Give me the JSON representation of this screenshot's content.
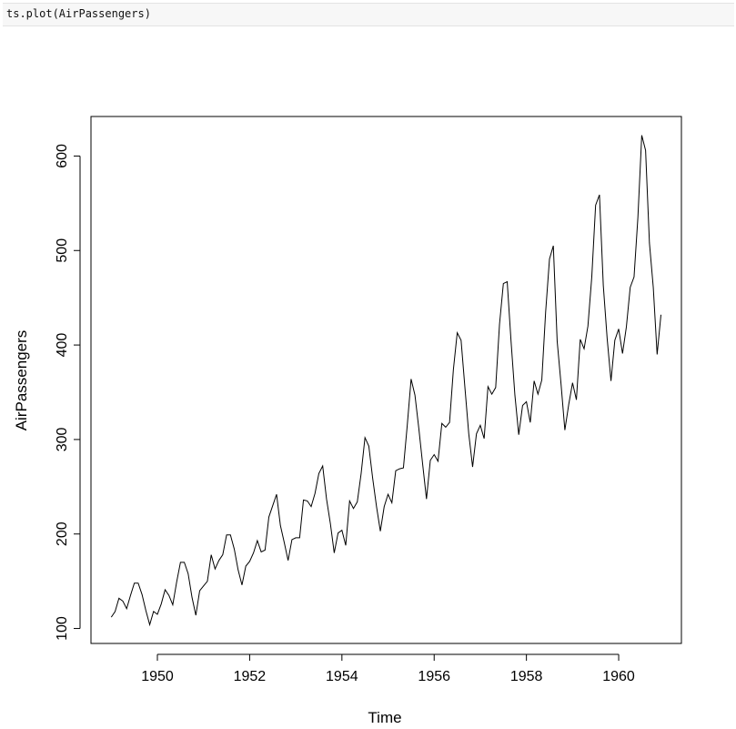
{
  "code_cell": {
    "command": "ts.plot(AirPassengers)"
  },
  "chart_data": {
    "type": "line",
    "xlabel": "Time",
    "ylabel": "AirPassengers",
    "xlim": [
      1948.56,
      1961.36
    ],
    "ylim": [
      84.16,
      641.84
    ],
    "x_ticks": [
      1950,
      1952,
      1954,
      1956,
      1958,
      1960
    ],
    "x_tick_labels": [
      "1950",
      "1952",
      "1954",
      "1956",
      "1958",
      "1960"
    ],
    "y_ticks": [
      100,
      200,
      300,
      400,
      500,
      600
    ],
    "y_tick_labels": [
      "100",
      "200",
      "300",
      "400",
      "500",
      "600"
    ],
    "grid": false,
    "legend": false,
    "line_color": "#000000",
    "x_start": 1949,
    "x_step": 0.0833333,
    "series": [
      {
        "values": [
          112,
          118,
          132,
          129,
          121,
          135,
          148,
          148,
          136,
          119,
          104,
          118,
          115,
          126,
          141,
          135,
          125,
          149,
          170,
          170,
          158,
          133,
          114,
          140,
          145,
          150,
          178,
          163,
          172,
          178,
          199,
          199,
          184,
          162,
          146,
          166,
          171,
          180,
          193,
          181,
          183,
          218,
          230,
          242,
          209,
          191,
          172,
          194,
          196,
          196,
          236,
          235,
          229,
          243,
          264,
          272,
          237,
          211,
          180,
          201,
          204,
          188,
          235,
          227,
          234,
          264,
          302,
          293,
          259,
          229,
          203,
          229,
          242,
          233,
          267,
          269,
          270,
          315,
          364,
          347,
          312,
          274,
          237,
          278,
          284,
          277,
          317,
          313,
          318,
          374,
          413,
          405,
          355,
          306,
          271,
          306,
          315,
          301,
          356,
          348,
          355,
          422,
          465,
          467,
          404,
          347,
          305,
          336,
          340,
          318,
          362,
          348,
          363,
          435,
          491,
          505,
          404,
          359,
          310,
          337,
          360,
          342,
          406,
          396,
          420,
          472,
          548,
          559,
          463,
          407,
          362,
          405,
          417,
          391,
          419,
          461,
          472,
          535,
          622,
          606,
          508,
          461,
          390,
          432
        ]
      }
    ]
  }
}
